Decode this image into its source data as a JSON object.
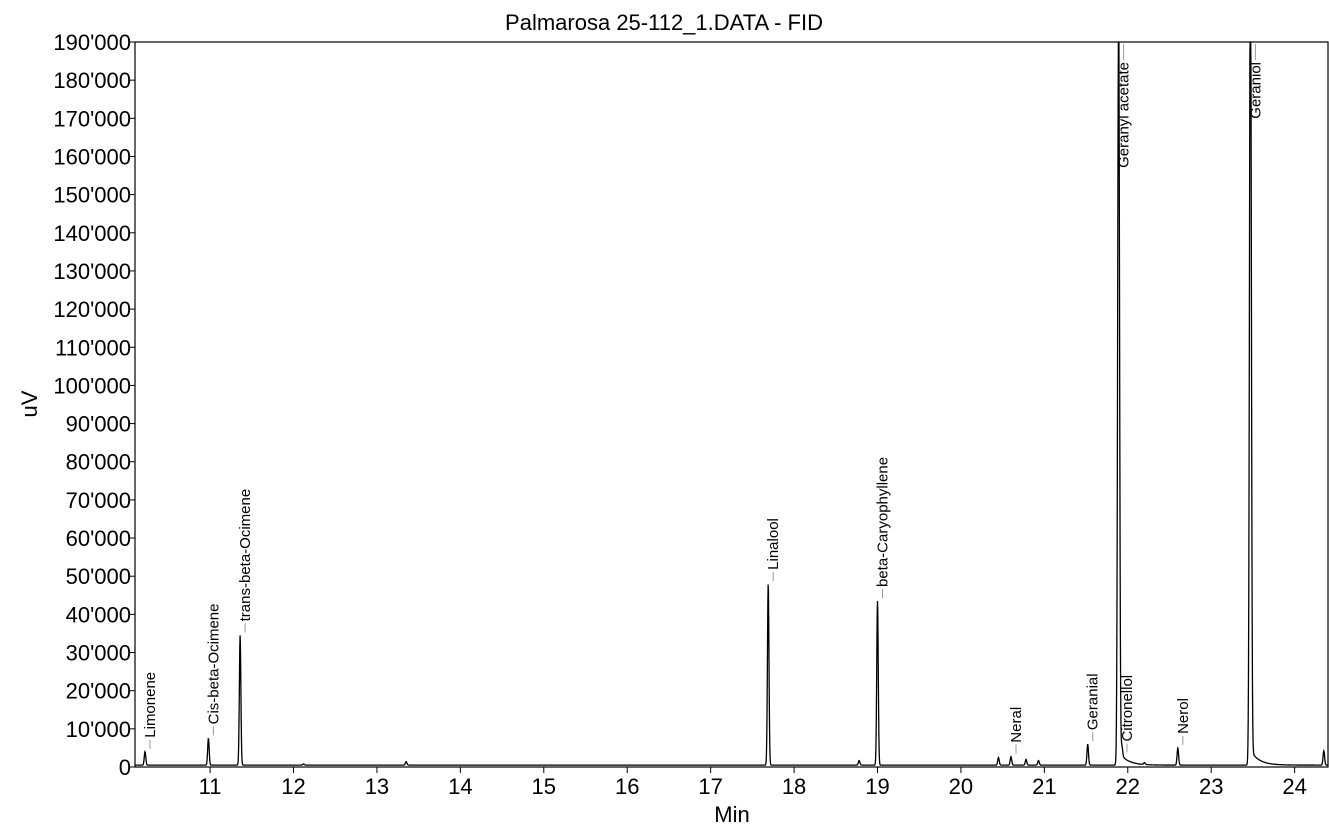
{
  "chart_data": {
    "type": "line",
    "title": "Palmarosa 25-112_1.DATA - FID",
    "xlabel": "Min",
    "ylabel": "uV",
    "xlim": [
      10.1,
      24.4
    ],
    "ylim": [
      0,
      190000
    ],
    "x_ticks": [
      11,
      12,
      13,
      14,
      15,
      16,
      17,
      18,
      19,
      20,
      21,
      22,
      23,
      24
    ],
    "y_ticks": [
      0,
      10000,
      20000,
      30000,
      40000,
      50000,
      60000,
      70000,
      80000,
      90000,
      100000,
      110000,
      120000,
      130000,
      140000,
      150000,
      160000,
      170000,
      180000,
      190000
    ],
    "y_tick_labels": [
      "0",
      "10'000",
      "20'000",
      "30'000",
      "40'000",
      "50'000",
      "60'000",
      "70'000",
      "80'000",
      "90'000",
      "100'000",
      "110'000",
      "120'000",
      "130'000",
      "140'000",
      "150'000",
      "160'000",
      "170'000",
      "180'000",
      "190'000"
    ],
    "grid": false,
    "baseline": 500,
    "series": [
      {
        "color": "#000000",
        "peaks": [
          {
            "t": 10.22,
            "h": 3500,
            "label": "Limonene"
          },
          {
            "t": 10.98,
            "h": 7000,
            "label": "Cis-beta-Ocimene"
          },
          {
            "t": 11.36,
            "h": 34000,
            "label": "trans-beta-Ocimene"
          },
          {
            "t": 12.12,
            "h": 300,
            "label": ""
          },
          {
            "t": 13.35,
            "h": 900,
            "label": ""
          },
          {
            "t": 17.69,
            "h": 47500,
            "label": "Linalool"
          },
          {
            "t": 18.78,
            "h": 1200,
            "label": ""
          },
          {
            "t": 19.0,
            "h": 43000,
            "label": "beta-Caryophyllene"
          },
          {
            "t": 20.45,
            "h": 2000,
            "label": ""
          },
          {
            "t": 20.6,
            "h": 2200,
            "label": "Neral"
          },
          {
            "t": 20.78,
            "h": 1500,
            "label": ""
          },
          {
            "t": 20.93,
            "h": 1200,
            "label": ""
          },
          {
            "t": 21.52,
            "h": 5500,
            "label": "Geranial"
          },
          {
            "t": 21.89,
            "h": 200000,
            "label": "Geranyl acetate"
          },
          {
            "t": 21.93,
            "h": 2500,
            "label": "Citronellol"
          },
          {
            "t": 22.2,
            "h": 500,
            "label": ""
          },
          {
            "t": 22.6,
            "h": 4500,
            "label": "Nerol"
          },
          {
            "t": 23.47,
            "h": 220000,
            "label": "Geraniol"
          },
          {
            "t": 24.35,
            "h": 3800,
            "label": ""
          }
        ]
      }
    ]
  }
}
